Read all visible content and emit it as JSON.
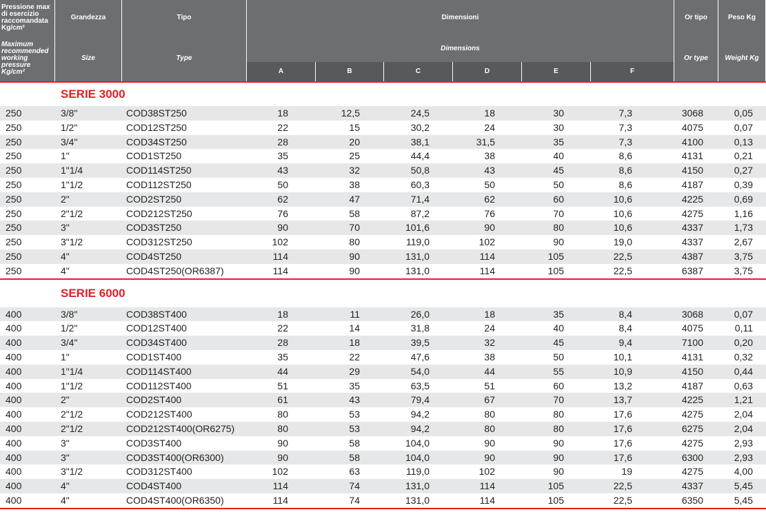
{
  "header": {
    "it": {
      "pressure": "Pressione max di esercizio raccomandata Kg/cm²",
      "size": "Grandezza",
      "type": "Tipo",
      "dimensions": "Dimensioni",
      "or_type": "Or tipo",
      "weight": "Peso Kg"
    },
    "en": {
      "pressure": "Maximum recommended working pressure Kg/cm²",
      "size": "Size",
      "type": "Type",
      "dimensions": "Dimensions",
      "or_type": "Or type",
      "weight": "Weight Kg"
    },
    "dims": [
      "A",
      "B",
      "C",
      "D",
      "E",
      "F"
    ]
  },
  "sections": [
    {
      "title": "SERIE 3000",
      "rows": [
        [
          "250",
          "3/8\"",
          "COD38ST250",
          "18",
          "12,5",
          "24,5",
          "18",
          "30",
          "7,3",
          "3068",
          "0,05"
        ],
        [
          "250",
          "1/2\"",
          "COD12ST250",
          "22",
          "15",
          "30,2",
          "24",
          "30",
          "7,3",
          "4075",
          "0,07"
        ],
        [
          "250",
          "3/4\"",
          "COD34ST250",
          "28",
          "20",
          "38,1",
          "31,5",
          "35",
          "7,3",
          "4100",
          "0,13"
        ],
        [
          "250",
          "1\"",
          "COD1ST250",
          "35",
          "25",
          "44,4",
          "38",
          "40",
          "8,6",
          "4131",
          "0,21"
        ],
        [
          "250",
          "1\"1/4",
          "COD114ST250",
          "43",
          "32",
          "50,8",
          "43",
          "45",
          "8,6",
          "4150",
          "0,27"
        ],
        [
          "250",
          "1\"1/2",
          "COD112ST250",
          "50",
          "38",
          "60,3",
          "50",
          "50",
          "8,6",
          "4187",
          "0,39"
        ],
        [
          "250",
          "2\"",
          "COD2ST250",
          "62",
          "47",
          "71,4",
          "62",
          "60",
          "10,6",
          "4225",
          "0,69"
        ],
        [
          "250",
          "2\"1/2",
          "COD212ST250",
          "76",
          "58",
          "87,2",
          "76",
          "70",
          "10,6",
          "4275",
          "1,16"
        ],
        [
          "250",
          "3\"",
          "COD3ST250",
          "90",
          "70",
          "101,6",
          "90",
          "80",
          "10,6",
          "4337",
          "1,73"
        ],
        [
          "250",
          "3\"1/2",
          "COD312ST250",
          "102",
          "80",
          "119,0",
          "102",
          "90",
          "19,0",
          "4337",
          "2,67"
        ],
        [
          "250",
          "4\"",
          "COD4ST250",
          "114",
          "90",
          "131,0",
          "114",
          "105",
          "22,5",
          "4387",
          "3,75"
        ],
        [
          "250",
          "4\"",
          "COD4ST250(OR6387)",
          "114",
          "90",
          "131,0",
          "114",
          "105",
          "22,5",
          "6387",
          "3,75"
        ]
      ]
    },
    {
      "title": "SERIE 6000",
      "rows": [
        [
          "400",
          "3/8\"",
          "COD38ST400",
          "18",
          "11",
          "26,0",
          "18",
          "35",
          "8,4",
          "3068",
          "0,07"
        ],
        [
          "400",
          "1/2\"",
          "COD12ST400",
          "22",
          "14",
          "31,8",
          "24",
          "40",
          "8,4",
          "4075",
          "0,11"
        ],
        [
          "400",
          "3/4\"",
          "COD34ST400",
          "28",
          "18",
          "39,5",
          "32",
          "45",
          "9,4",
          "7100",
          "0,20"
        ],
        [
          "400",
          "1\"",
          "COD1ST400",
          "35",
          "22",
          "47,6",
          "38",
          "50",
          "10,1",
          "4131",
          "0,32"
        ],
        [
          "400",
          "1\"1/4",
          "COD114ST400",
          "44",
          "29",
          "54,0",
          "44",
          "55",
          "10,9",
          "4150",
          "0,44"
        ],
        [
          "400",
          "1\"1/2",
          "COD112ST400",
          "51",
          "35",
          "63,5",
          "51",
          "60",
          "13,2",
          "4187",
          "0,63"
        ],
        [
          "400",
          "2\"",
          "COD2ST400",
          "61",
          "43",
          "79,4",
          "67",
          "70",
          "13,7",
          "4225",
          "1,21"
        ],
        [
          "400",
          "2\"1/2",
          "COD212ST400",
          "80",
          "53",
          "94,2",
          "80",
          "80",
          "17,6",
          "4275",
          "2,04"
        ],
        [
          "400",
          "2\"1/2",
          "COD212ST400(OR6275)",
          "80",
          "53",
          "94,2",
          "80",
          "80",
          "17,6",
          "6275",
          "2,04"
        ],
        [
          "400",
          "3\"",
          "COD3ST400",
          "90",
          "58",
          "104,0",
          "90",
          "90",
          "17,6",
          "4275",
          "2,93"
        ],
        [
          "400",
          "3\"",
          "COD3ST400(OR6300)",
          "90",
          "58",
          "104,0",
          "90",
          "90",
          "17,6",
          "6300",
          "2,93"
        ],
        [
          "400",
          "3\"1/2",
          "COD312ST400",
          "102",
          "63",
          "119,0",
          "102",
          "90",
          "19",
          "4275",
          "4,00"
        ],
        [
          "400",
          "4\"",
          "COD4ST400",
          "114",
          "74",
          "131,0",
          "114",
          "105",
          "22,5",
          "4337",
          "5,45"
        ],
        [
          "400",
          "4\"",
          "COD4ST400(OR6350)",
          "114",
          "74",
          "131,0",
          "114",
          "105",
          "22,5",
          "6350",
          "5,45"
        ]
      ]
    }
  ]
}
